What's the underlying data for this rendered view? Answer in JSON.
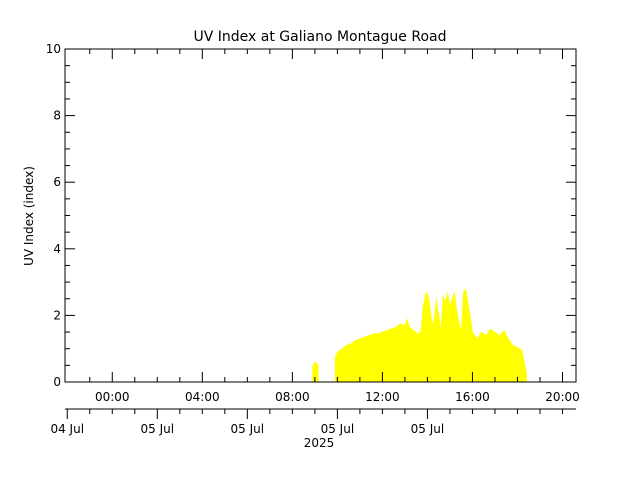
{
  "chart_data": {
    "type": "area",
    "title": "UV Index at Galiano Montague Road",
    "ylabel": "UV Index (index)",
    "ylim": [
      0,
      10
    ],
    "yticks": [
      0,
      2,
      4,
      6,
      8,
      10
    ],
    "xlim_hours": [
      -2.1,
      20.6
    ],
    "xticks_top": [
      "00:00",
      "04:00",
      "08:00",
      "12:00",
      "16:00",
      "20:00"
    ],
    "xticks_bottom": [
      "04 Jul",
      "05 Jul",
      "05 Jul",
      "05 Jul",
      "05 Jul"
    ],
    "xlabel_bottom": "2025",
    "fill_color": "#ffff00",
    "series": [
      {
        "segments": [
          [
            [
              8.9,
              0.5
            ],
            [
              9.0,
              0.6
            ],
            [
              9.1,
              0.55
            ],
            [
              9.15,
              0.5
            ]
          ],
          [
            [
              9.9,
              0.75
            ],
            [
              10.0,
              0.9
            ],
            [
              10.2,
              1.0
            ],
            [
              10.4,
              1.1
            ],
            [
              10.6,
              1.15
            ],
            [
              10.8,
              1.25
            ],
            [
              11.0,
              1.3
            ],
            [
              11.2,
              1.35
            ],
            [
              11.4,
              1.4
            ],
            [
              11.6,
              1.45
            ],
            [
              11.8,
              1.45
            ],
            [
              12.0,
              1.5
            ],
            [
              12.2,
              1.55
            ],
            [
              12.4,
              1.6
            ],
            [
              12.6,
              1.65
            ],
            [
              12.8,
              1.75
            ],
            [
              13.0,
              1.7
            ],
            [
              13.1,
              1.9
            ],
            [
              13.2,
              1.65
            ],
            [
              13.4,
              1.55
            ],
            [
              13.6,
              1.45
            ],
            [
              13.7,
              1.5
            ],
            [
              13.8,
              2.2
            ],
            [
              13.9,
              2.6
            ],
            [
              14.0,
              2.7
            ],
            [
              14.1,
              2.35
            ],
            [
              14.2,
              1.75
            ],
            [
              14.3,
              1.9
            ],
            [
              14.4,
              2.5
            ],
            [
              14.5,
              2.0
            ],
            [
              14.6,
              1.6
            ],
            [
              14.7,
              2.6
            ],
            [
              14.8,
              2.4
            ],
            [
              14.9,
              2.7
            ],
            [
              15.0,
              2.3
            ],
            [
              15.1,
              2.5
            ],
            [
              15.2,
              2.7
            ],
            [
              15.3,
              2.2
            ],
            [
              15.4,
              1.8
            ],
            [
              15.5,
              1.5
            ],
            [
              15.6,
              2.7
            ],
            [
              15.7,
              2.8
            ],
            [
              15.8,
              2.4
            ],
            [
              15.9,
              2.0
            ],
            [
              16.0,
              1.5
            ],
            [
              16.2,
              1.3
            ],
            [
              16.4,
              1.5
            ],
            [
              16.6,
              1.4
            ],
            [
              16.8,
              1.6
            ],
            [
              17.0,
              1.5
            ],
            [
              17.2,
              1.4
            ],
            [
              17.4,
              1.55
            ],
            [
              17.6,
              1.3
            ],
            [
              17.8,
              1.1
            ],
            [
              18.0,
              1.05
            ],
            [
              18.2,
              0.95
            ],
            [
              18.3,
              0.6
            ],
            [
              18.4,
              0.3
            ]
          ]
        ]
      }
    ]
  }
}
